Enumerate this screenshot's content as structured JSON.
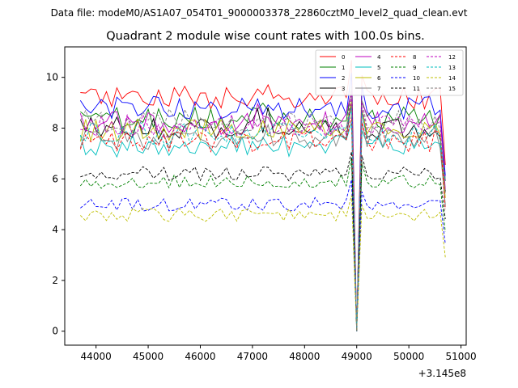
{
  "figure": {
    "suptitle": "Data file: modeM0/AS1A07_054T01_9000003378_22860cztM0_level2_quad_clean.evt"
  },
  "chart_data": {
    "type": "line",
    "title": "Quadrant 2 module wise count rates with 100.0s bins.",
    "xlabel": "",
    "ylabel": "",
    "x_offset_label": "+3.145e8",
    "xlim": [
      43400,
      51100
    ],
    "ylim": [
      -0.55,
      11.2
    ],
    "xticks": [
      44000,
      45000,
      46000,
      47000,
      48000,
      49000,
      50000,
      51000
    ],
    "yticks": [
      0,
      2,
      4,
      6,
      8,
      10
    ],
    "grid": false,
    "legend_position": "top-right",
    "bins": {
      "start": 43700,
      "step": 100,
      "count": 71
    },
    "series": [
      {
        "name": "0",
        "color": "#ff0000",
        "dash": "solid",
        "level": 9.2
      },
      {
        "name": "1",
        "color": "#008000",
        "dash": "solid",
        "level": 8.4
      },
      {
        "name": "2",
        "color": "#0000ff",
        "dash": "solid",
        "level": 8.8
      },
      {
        "name": "3",
        "color": "#000000",
        "dash": "solid",
        "level": 8.0
      },
      {
        "name": "4",
        "color": "#bf00bf",
        "dash": "solid",
        "level": 8.2
      },
      {
        "name": "5",
        "color": "#00bfbf",
        "dash": "solid",
        "level": 7.3
      },
      {
        "name": "6",
        "color": "#bfbf00",
        "dash": "solid",
        "level": 7.9
      },
      {
        "name": "7",
        "color": "#808080",
        "dash": "solid",
        "level": 7.6
      },
      {
        "name": "8",
        "color": "#ff0000",
        "dash": "dashed",
        "level": 7.5
      },
      {
        "name": "9",
        "color": "#008000",
        "dash": "dashed",
        "level": 5.9
      },
      {
        "name": "10",
        "color": "#0000ff",
        "dash": "dashed",
        "level": 5.0
      },
      {
        "name": "11",
        "color": "#000000",
        "dash": "dashed",
        "level": 6.2
      },
      {
        "name": "12",
        "color": "#bf00bf",
        "dash": "dashed",
        "level": 8.1
      },
      {
        "name": "13",
        "color": "#00bfbf",
        "dash": "dashed",
        "level": 7.8
      },
      {
        "name": "14",
        "color": "#bfbf00",
        "dash": "dashed",
        "level": 4.6
      },
      {
        "name": "15",
        "color": "#808080",
        "dash": "dashed",
        "level": 8.3
      }
    ]
  }
}
